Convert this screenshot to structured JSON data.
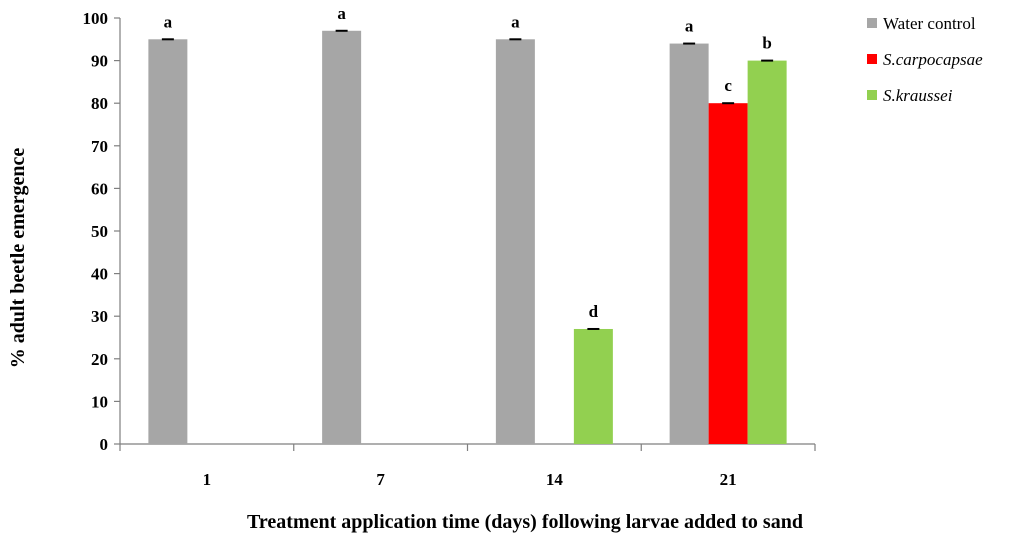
{
  "chart_data": {
    "type": "bar",
    "categories": [
      "1",
      "7",
      "14",
      "21"
    ],
    "xlabel": "Treatment application time (days) following larvae added to sand",
    "ylabel": "% adult beetle emergence",
    "ylim": [
      0,
      100
    ],
    "yticks": [
      0,
      10,
      20,
      30,
      40,
      50,
      60,
      70,
      80,
      90,
      100
    ],
    "grid": false,
    "legend_position": "top-right",
    "series": [
      {
        "name": "Water control",
        "color": "#a6a6a6",
        "italic": false,
        "values": [
          95,
          97,
          95,
          94
        ],
        "sig_labels": [
          "a",
          "a",
          "a",
          "a"
        ]
      },
      {
        "name": "S.carpocapsae",
        "color": "#ff0000",
        "italic": true,
        "values": [
          null,
          null,
          null,
          80
        ],
        "sig_labels": [
          "",
          "",
          "",
          "c"
        ]
      },
      {
        "name": "S.kraussei",
        "color": "#92d050",
        "italic": true,
        "values": [
          null,
          null,
          27,
          90
        ],
        "sig_labels": [
          "",
          "",
          "d",
          "b"
        ]
      }
    ]
  }
}
